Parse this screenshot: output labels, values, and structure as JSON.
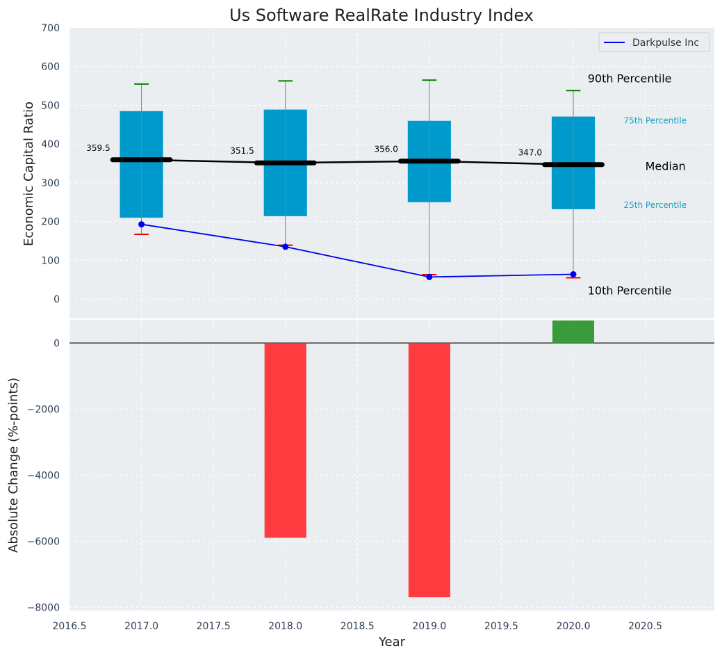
{
  "chart_data": [
    {
      "type": "box",
      "title": "Us Software RealRate Industry Index",
      "ylabel": "Economic Capital Ratio",
      "xlim": [
        2016.5,
        2020.98
      ],
      "ylim": [
        -50,
        700
      ],
      "grid": true,
      "legend_position": "top-right",
      "x": [
        2017,
        2018,
        2019,
        2020
      ],
      "x_ticks": [
        "2016.5",
        "2017.0",
        "2017.5",
        "2018.0",
        "2018.5",
        "2019.0",
        "2019.5",
        "2020.0",
        "2020.5"
      ],
      "y_ticks": [
        "0",
        "100",
        "200",
        "300",
        "400",
        "500",
        "600",
        "700"
      ],
      "p10": [
        167,
        139,
        63,
        55
      ],
      "p25": [
        210,
        214,
        250,
        232
      ],
      "median": [
        359.5,
        351.5,
        356.0,
        347.0
      ],
      "median_labels": [
        "359.5",
        "351.5",
        "356.0",
        "347.0"
      ],
      "p75": [
        485,
        489,
        460,
        471
      ],
      "p90": [
        555,
        563,
        565,
        538
      ],
      "series": [
        {
          "name": "Darkpulse Inc",
          "values": [
            193,
            135,
            57,
            64
          ],
          "color": "#0000ee"
        }
      ],
      "annotations": {
        "p90": "90th Percentile",
        "p75": "75th Percentile",
        "median": "Median",
        "p25": "25th Percentile",
        "p10": "10th Percentile"
      },
      "colors": {
        "box": "#0099cc",
        "median_line": "#000000",
        "p90_cap": "#008000",
        "p10_cap": "#ee0000",
        "small_annotation": "#1b9fc4",
        "background": "#eaeef0"
      }
    },
    {
      "type": "bar",
      "xlabel": "Year",
      "ylabel": "Absolute Change (%-points)",
      "ylim": [
        -8100,
        700
      ],
      "x": [
        2018,
        2019,
        2020
      ],
      "values": [
        -5900,
        -7700,
        680
      ],
      "y_ticks": [
        "−8000",
        "−6000",
        "−4000",
        "−2000",
        "0"
      ],
      "y_tick_values": [
        -8000,
        -6000,
        -4000,
        -2000,
        0
      ],
      "colors": {
        "negative": "#ff3b3f",
        "positive": "#3a9b3a"
      }
    }
  ]
}
